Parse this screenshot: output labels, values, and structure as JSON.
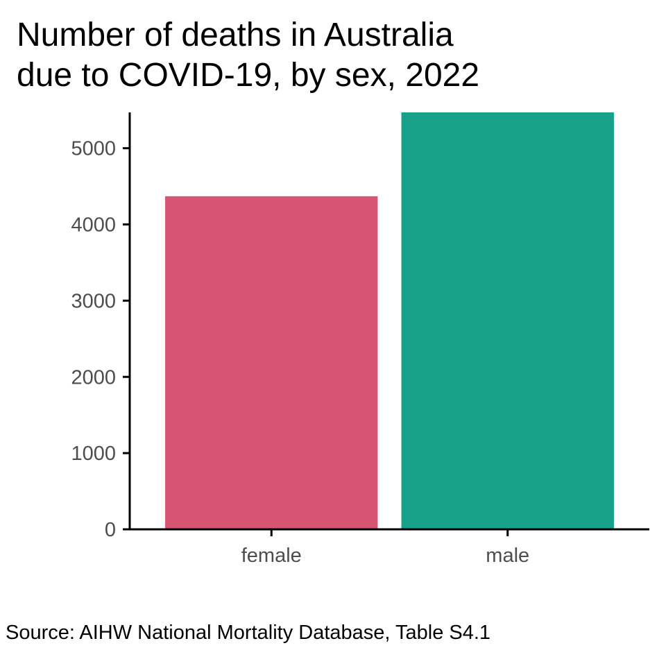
{
  "chart_data": {
    "type": "bar",
    "title": [
      "Number of deaths in Australia",
      "due to COVID-19, by sex, 2022"
    ],
    "caption": "Source: AIHW National Mortality Database, Table S4.1",
    "xlabel": "",
    "ylabel": "",
    "categories": [
      "female",
      "male"
    ],
    "values": [
      4370,
      5470
    ],
    "colors": [
      "#d75472",
      "#17a08a"
    ],
    "ylim": [
      0,
      5470
    ],
    "yticks": [
      0,
      1000,
      2000,
      3000,
      4000,
      5000
    ],
    "ytick_labels": [
      "0",
      "1000",
      "2000",
      "3000",
      "4000",
      "5000"
    ],
    "grid": false,
    "legend": "none"
  }
}
